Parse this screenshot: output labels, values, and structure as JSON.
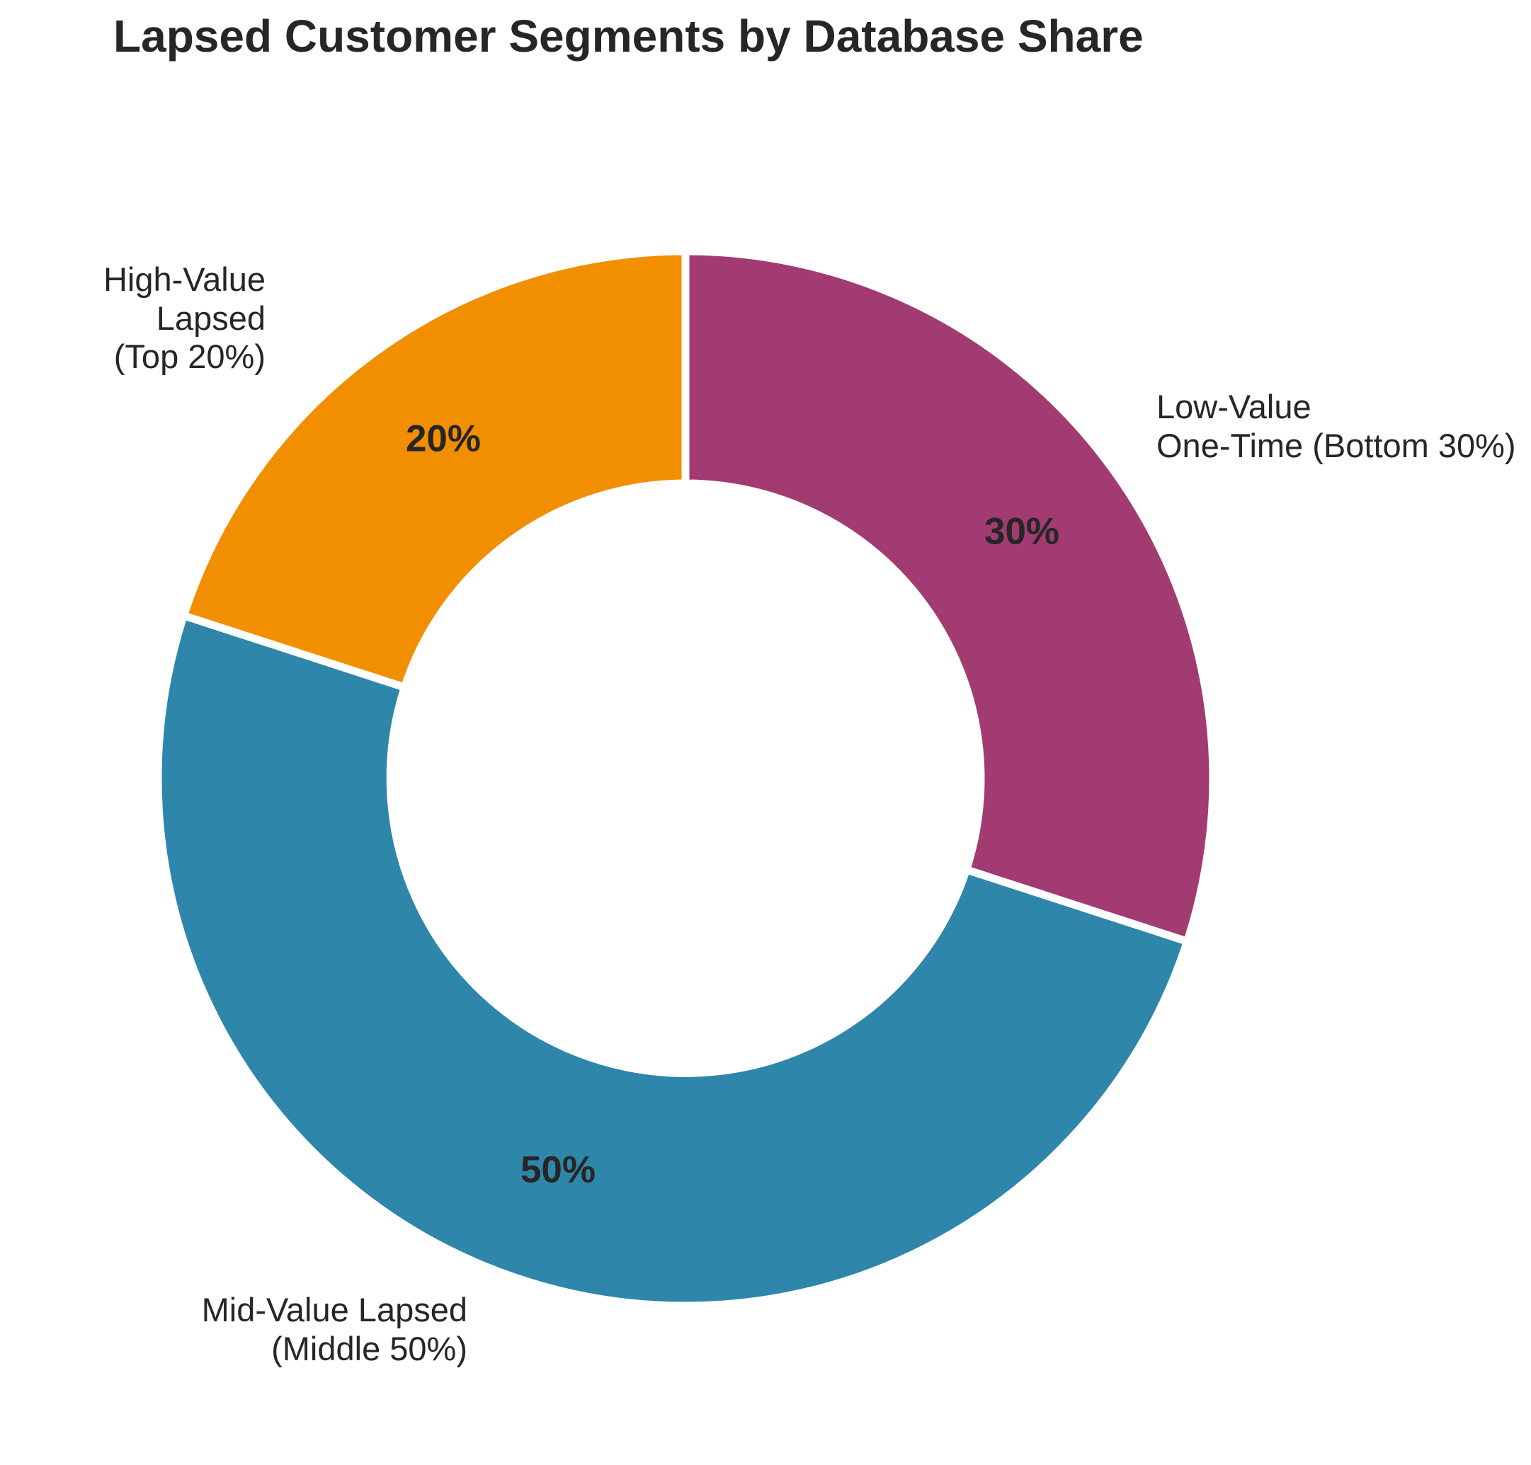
{
  "chart_data": {
    "type": "pie",
    "subtype": "donut",
    "title": "Lapsed Customer Segments by Database Share",
    "direction": "clockwise",
    "start_angle": "12-oclock",
    "inner_radius_ratio": 0.56,
    "background_color": "#ffffff",
    "text_color": "#262626",
    "separator_color": "#ffffff",
    "legend": "none",
    "segments": [
      {
        "label": "Low-Value\nOne-Time (Bottom 30%)",
        "value": 30,
        "pct_label": "30%",
        "color": "#A23B72"
      },
      {
        "label": "Mid-Value Lapsed\n(Middle 50%)",
        "value": 50,
        "pct_label": "50%",
        "color": "#2E86AB"
      },
      {
        "label": "High-Value Lapsed\n(Top 20%)",
        "value": 20,
        "pct_label": "20%",
        "color": "#F18F01"
      }
    ]
  }
}
